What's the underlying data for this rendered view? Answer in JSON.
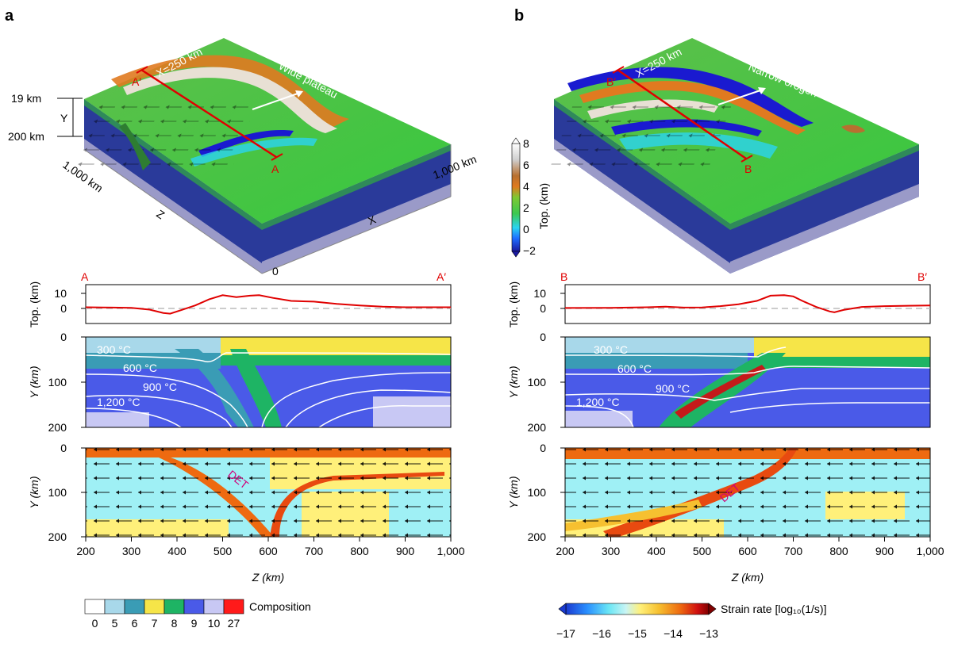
{
  "panels": {
    "a": {
      "letter": "a",
      "block": {
        "section_x": "X=250 km",
        "feature": "Wide plateau",
        "start": "A′",
        "end": "A",
        "depth_top": "19 km",
        "depth_axis": "Y",
        "depth_bottom": "200 km",
        "z_extent": "1,000 km",
        "z_axis": "Z",
        "x_extent": "1,000 km",
        "x_axis": "X",
        "origin": "0"
      },
      "profile": {
        "left": "A",
        "right": "A′",
        "ylabel": "Top. (km)",
        "ticks": [
          "10",
          "0"
        ]
      },
      "temp": {
        "ylabel": "Y (km)",
        "ticks": [
          "0",
          "100",
          "200"
        ],
        "isotherms": [
          "300 °C",
          "600 °C",
          "900 °C",
          "1,200 °C"
        ]
      },
      "strain": {
        "ylabel": "Y (km)",
        "ticks": [
          "0",
          "100",
          "200"
        ],
        "label": "DET"
      },
      "xaxis": {
        "ticks": [
          "200",
          "300",
          "400",
          "500",
          "600",
          "700",
          "800",
          "900",
          "1,000"
        ],
        "label": "Z (km)"
      }
    },
    "b": {
      "letter": "b",
      "block": {
        "section_x": "X=250 km",
        "feature": "Narrow orogen",
        "start": "B′",
        "end": "B"
      },
      "profile": {
        "left": "B",
        "right": "B′",
        "ylabel": "Top. (km)",
        "ticks": [
          "10",
          "0"
        ]
      },
      "temp": {
        "ylabel": "Y (km)",
        "ticks": [
          "0",
          "100",
          "200"
        ],
        "isotherms": [
          "300 °C",
          "600 °C",
          "900 °C",
          "1,200 °C"
        ]
      },
      "strain": {
        "ylabel": "Y (km)",
        "ticks": [
          "0",
          "100",
          "200"
        ],
        "label": "DET"
      },
      "xaxis": {
        "ticks": [
          "200",
          "300",
          "400",
          "500",
          "600",
          "700",
          "800",
          "900",
          "1,000"
        ],
        "label": "Z (km)"
      }
    }
  },
  "topo_colorbar": {
    "label": "Top. (km)",
    "ticks": [
      "8",
      "6",
      "4",
      "2",
      "0",
      "−2"
    ]
  },
  "composition_legend": {
    "label": "Composition",
    "ticks": [
      "0",
      "5",
      "6",
      "7",
      "8",
      "9",
      "10",
      "27"
    ],
    "colors": [
      "#ffffff",
      "#a8d8ea",
      "#3a9cb5",
      "#f6e548",
      "#1eb464",
      "#4a5ae8",
      "#c8c8f4",
      "#ff1a1a"
    ]
  },
  "strain_legend": {
    "label": "Strain rate [log₁₀(1/s)]",
    "ticks": [
      "−17",
      "−16",
      "−15",
      "−14",
      "−13"
    ]
  },
  "profile_data": {
    "a": {
      "z": [
        200,
        260,
        300,
        340,
        370,
        385,
        410,
        440,
        470,
        500,
        530,
        560,
        580,
        610,
        650,
        700,
        750,
        800,
        850,
        900,
        1000
      ],
      "top": [
        0.8,
        0.6,
        0.4,
        -0.8,
        -3,
        -3.5,
        -1,
        2,
        6,
        8.8,
        7.5,
        8.5,
        8.8,
        7,
        5,
        4.5,
        3,
        2,
        1.2,
        0.8,
        0.8
      ]
    },
    "b": {
      "z": [
        200,
        300,
        380,
        420,
        460,
        500,
        540,
        580,
        620,
        650,
        680,
        700,
        720,
        750,
        780,
        790,
        810,
        850,
        900,
        1000
      ],
      "top": [
        0.3,
        0.4,
        0.8,
        1.2,
        0.6,
        0.7,
        1.5,
        2.8,
        5,
        8.5,
        8.8,
        8,
        5,
        1,
        -2,
        -2.5,
        -1,
        1,
        1.5,
        2
      ]
    }
  }
}
